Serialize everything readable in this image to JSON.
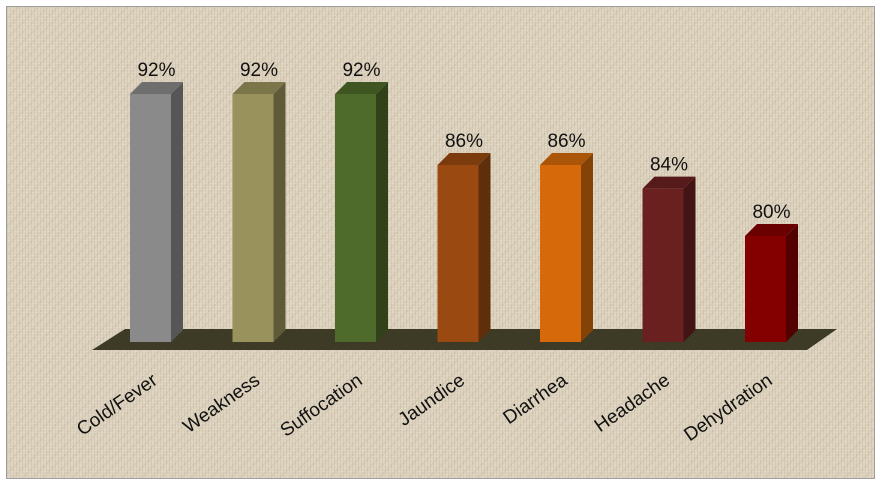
{
  "chart_data": {
    "type": "bar",
    "style": "3d-column",
    "categories": [
      "Cold/Fever",
      "Weakness",
      "Suffocation",
      "Jaundice",
      "Diarrhea",
      "Headache",
      "Dehydration"
    ],
    "values": [
      92,
      92,
      92,
      86,
      86,
      84,
      80
    ],
    "value_labels": [
      "92%",
      "92%",
      "92%",
      "86%",
      "86%",
      "84%",
      "80%"
    ],
    "colors": [
      "#8a8a8a",
      "#9a925c",
      "#4f6b2c",
      "#9a4a10",
      "#d66a0a",
      "#6b2020",
      "#840000"
    ],
    "floor_color": "#3d3a26",
    "title": "",
    "xlabel": "",
    "ylabel": "",
    "ylim": [
      70,
      100
    ],
    "grid": false,
    "legend": "none"
  }
}
